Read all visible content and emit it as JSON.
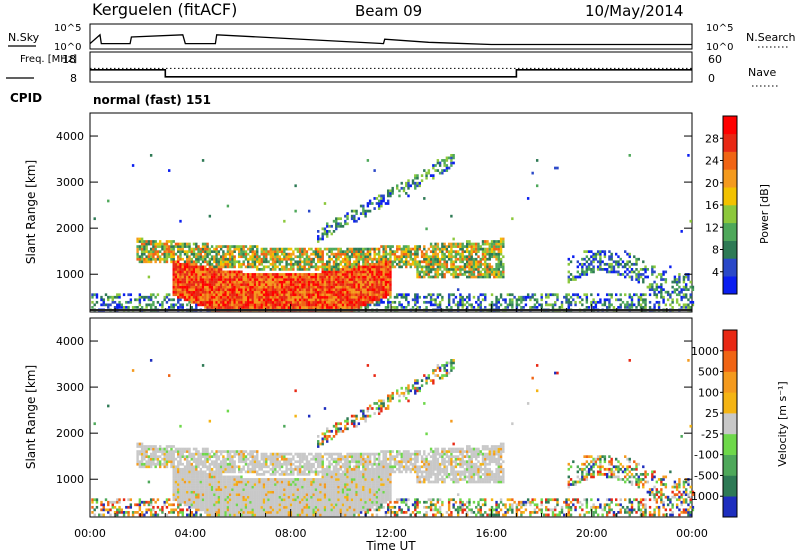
{
  "header": {
    "station": "Kerguelen (fitACF)",
    "beam": "Beam 09",
    "date": "10/May/2014"
  },
  "chart_data": [
    {
      "type": "line",
      "panel": "noise",
      "left_label": "N.Sky",
      "right_label": "N.Search",
      "y_ticks": [
        "10^5",
        "10^0"
      ],
      "right_ticks": [
        "10^5",
        "10^0"
      ],
      "series": [
        {
          "name": "N.Sky",
          "style": "solid",
          "x": [
            0,
            0.4,
            0.45,
            1.6,
            1.65,
            3.7,
            3.8,
            5,
            5.05,
            11.7,
            11.75,
            13.5,
            14.5,
            16,
            24
          ],
          "values": [
            1,
            3,
            1,
            1,
            2.5,
            3,
            1,
            1,
            3,
            1,
            2,
            1.3,
            1.1,
            0.8,
            0.8
          ]
        }
      ]
    },
    {
      "type": "line",
      "panel": "frequency",
      "left_label": "Freq. [MHz]",
      "right_label": "Nave",
      "y_ticks": [
        "18",
        "8"
      ],
      "right_ticks": [
        "60",
        "0"
      ],
      "series": [
        {
          "name": "Freq.",
          "style": "solid",
          "x": [
            0,
            3,
            3,
            17,
            17,
            24
          ],
          "values": [
            12.0,
            12.0,
            9.5,
            9.5,
            12.0,
            12.0
          ]
        },
        {
          "name": "Nave",
          "style": "dotted",
          "x": [
            0,
            24
          ],
          "values": [
            27,
            27
          ]
        }
      ]
    },
    {
      "type": "table",
      "panel": "cpid",
      "label": "CPID",
      "text": "normal (fast) 151"
    },
    {
      "type": "heatmap",
      "panel": "power",
      "xlabel": "Time UT",
      "ylabel": "Slant Range [km]",
      "xlim": [
        0,
        24
      ],
      "ylim": [
        180,
        4500
      ],
      "y_ticks": [
        1000,
        2000,
        3000,
        4000
      ],
      "colorbar": {
        "label": "Power [dB]",
        "ticks": [
          "4",
          "8",
          "12",
          "16",
          "20",
          "24",
          "28"
        ],
        "colors": [
          "#0a1ef0",
          "#2a48c8",
          "#2e7a55",
          "#4ea85a",
          "#8cc83c",
          "#f2c200",
          "#f49a1e",
          "#f06414",
          "#e82814",
          "#ff0000"
        ]
      }
    },
    {
      "type": "heatmap",
      "panel": "velocity",
      "xlabel": "Time UT",
      "ylabel": "Slant Range [km]",
      "xlim": [
        0,
        24
      ],
      "ylim": [
        180,
        4500
      ],
      "y_ticks": [
        1000,
        2000,
        3000,
        4000
      ],
      "x_ticks": [
        "00:00",
        "04:00",
        "08:00",
        "12:00",
        "16:00",
        "20:00",
        "00:00"
      ],
      "colorbar": {
        "label": "Velocity [m s⁻¹]",
        "ticks": [
          "1000",
          "500",
          "100",
          "25",
          "-25",
          "-100",
          "-500",
          "-1000"
        ],
        "colors": [
          "#1e2ebe",
          "#2e7a55",
          "#4ea85a",
          "#6ed84a",
          "#c8c8c8",
          "#f4b414",
          "#f49a1e",
          "#f06414",
          "#e82814"
        ]
      }
    }
  ]
}
